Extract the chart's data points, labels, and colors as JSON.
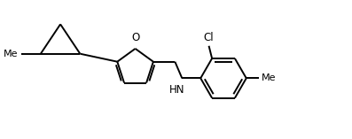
{
  "background_color": "#ffffff",
  "line_color": "#000000",
  "line_width": 1.4,
  "font_size": 8.5,
  "figsize": [
    3.97,
    1.57
  ],
  "dpi": 100,
  "xlim": [
    -0.2,
    7.8
  ],
  "ylim": [
    0.3,
    3.8
  ]
}
